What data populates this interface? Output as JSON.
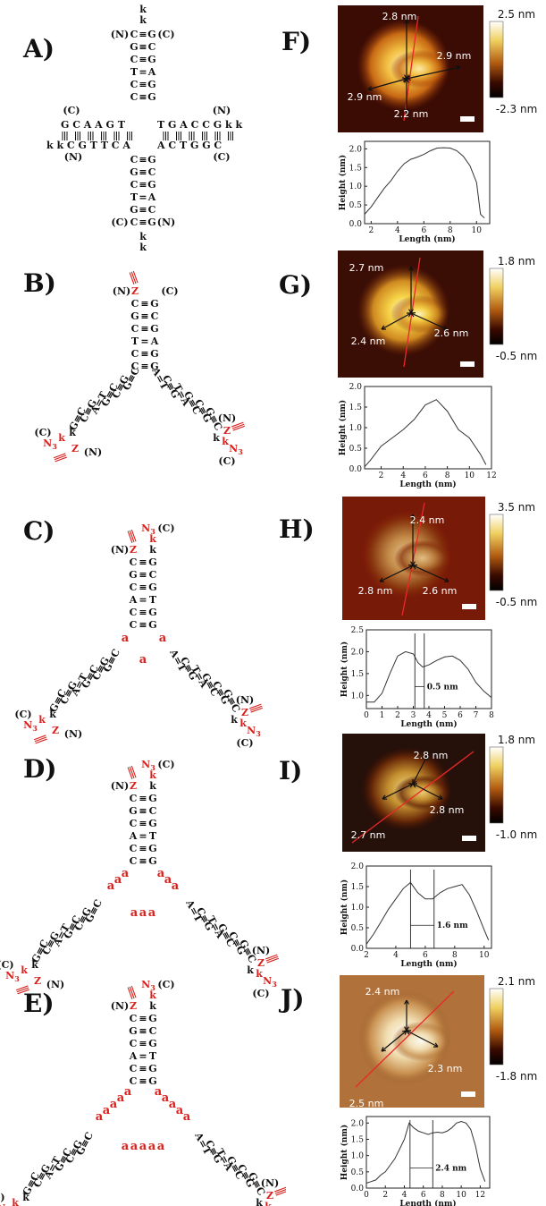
{
  "panel_labels": [
    "A)",
    "B)",
    "C)",
    "D)",
    "E)",
    "F)",
    "G)",
    "H)",
    "I)",
    "J)"
  ],
  "dna": {
    "A": {
      "top_linker": [
        "k",
        "k"
      ],
      "top_stem": [
        [
          "(N)",
          "C",
          "≡",
          "G",
          "(C)"
        ],
        [
          "",
          "G",
          "≡",
          "C",
          ""
        ],
        [
          "",
          "C",
          "≡",
          "G",
          ""
        ],
        [
          "",
          "T",
          "=",
          "A",
          ""
        ],
        [
          "",
          "C",
          "≡",
          "G",
          ""
        ],
        [
          "",
          "C",
          "≡",
          "G",
          ""
        ]
      ],
      "left_arm_top": "G C A A G T",
      "left_arm_bottom": "k k C G T T C A",
      "right_arm_top": "T G A C C G k k",
      "right_arm_bottom": "A C T G G C",
      "bottom_stem": [
        [
          "",
          "C",
          "≡",
          "G",
          ""
        ],
        [
          "",
          "G",
          "≡",
          "C",
          ""
        ],
        [
          "",
          "C",
          "≡",
          "G",
          ""
        ],
        [
          "",
          "T",
          "=",
          "A",
          ""
        ],
        [
          "",
          "G",
          "≡",
          "C",
          ""
        ],
        [
          "(C)",
          "C",
          "≡",
          "G",
          "(N)"
        ]
      ],
      "bottom_linker": [
        "k",
        "k"
      ],
      "terminals": {
        "c_left": "(C)",
        "n_left": "(N)",
        "n_right": "(N)",
        "c_right": "(C)"
      }
    },
    "stem": [
      [
        "C",
        "≡",
        "G"
      ],
      [
        "G",
        "≡",
        "C"
      ],
      [
        "C",
        "≡",
        "G"
      ],
      [
        "T",
        "=",
        "A"
      ],
      [
        "C",
        "≡",
        "G"
      ],
      [
        "C",
        "≡",
        "G"
      ]
    ],
    "stem_CDE": [
      [
        "C",
        "≡",
        "G"
      ],
      [
        "G",
        "≡",
        "C"
      ],
      [
        "C",
        "≡",
        "G"
      ],
      [
        "A",
        "=",
        "T"
      ],
      [
        "C",
        "≡",
        "G"
      ],
      [
        "C",
        "≡",
        "G"
      ]
    ],
    "arm_left_pairs": [
      "G≡C",
      "C≡G",
      "G≡C",
      "A=T",
      "C≡G",
      "G≡C"
    ],
    "arm_right_pairs": [
      "A=T",
      "C≡G",
      "T=A",
      "G≡C",
      "C≡G",
      "G≡C"
    ],
    "marks": {
      "k": "k",
      "Z": "Z",
      "N3": "N",
      "N3_sub": "3",
      "a": "a",
      "N": "(N)",
      "C": "(C)"
    },
    "spacers": {
      "C": [
        "a",
        "a",
        "a"
      ],
      "D": [
        "a",
        "a",
        "a"
      ],
      "E": [
        "a",
        "a",
        "a",
        "a",
        "a"
      ]
    }
  },
  "afm": [
    {
      "panel": "F)",
      "colorbar_max": "2.5 nm",
      "colorbar_min": "-2.3 nm",
      "annotations": [
        "2.8 nm",
        "2.9 nm",
        "2.9 nm",
        "2.2 nm"
      ]
    },
    {
      "panel": "G)",
      "colorbar_max": "1.8 nm",
      "colorbar_min": "-0.5 nm",
      "annotations": [
        "2.7 nm",
        "2.4 nm",
        "2.6 nm"
      ]
    },
    {
      "panel": "H)",
      "colorbar_max": "3.5 nm",
      "colorbar_min": "-0.5 nm",
      "annotations": [
        "2.4 nm",
        "2.8 nm",
        "2.6 nm"
      ]
    },
    {
      "panel": "I)",
      "colorbar_max": "1.8 nm",
      "colorbar_min": "-1.0 nm",
      "annotations": [
        "2.8 nm",
        "2.7 nm",
        "2.8 nm"
      ]
    },
    {
      "panel": "J)",
      "colorbar_max": "2.1 nm",
      "colorbar_min": "-1.8 nm",
      "annotations": [
        "2.4 nm",
        "2.3 nm",
        "2.5 nm"
      ]
    }
  ],
  "chart_data": [
    {
      "type": "line",
      "xlabel": "Length (nm)",
      "ylabel": "Height (nm)",
      "xlim": [
        1.5,
        11
      ],
      "ylim": [
        0,
        2.2
      ],
      "xticks": [
        2,
        4,
        6,
        8,
        10
      ],
      "yticks": [
        0.0,
        0.5,
        1.0,
        1.5,
        2.0
      ],
      "x": [
        1.5,
        2,
        2.5,
        3,
        3.5,
        4,
        4.5,
        5,
        5.5,
        6,
        6.5,
        7,
        7.5,
        8,
        8.5,
        9,
        9.5,
        10,
        10.3,
        10.6
      ],
      "y": [
        0.25,
        0.45,
        0.7,
        0.95,
        1.15,
        1.4,
        1.6,
        1.72,
        1.78,
        1.85,
        1.95,
        2.02,
        2.03,
        2.02,
        1.95,
        1.8,
        1.55,
        1.1,
        0.25,
        0.15
      ],
      "annotations": []
    },
    {
      "type": "line",
      "xlabel": "Length (nm)",
      "ylabel": "Height (nm)",
      "xlim": [
        0.5,
        12
      ],
      "ylim": [
        0,
        2.0
      ],
      "xticks": [
        2,
        4,
        6,
        8,
        10,
        12
      ],
      "yticks": [
        0.0,
        0.5,
        1.0,
        1.5,
        2.0
      ],
      "x": [
        0.5,
        1,
        2,
        3,
        4,
        5,
        6,
        7,
        8,
        9,
        10,
        11,
        11.5
      ],
      "y": [
        0.05,
        0.2,
        0.55,
        0.75,
        0.95,
        1.2,
        1.55,
        1.68,
        1.4,
        0.95,
        0.75,
        0.35,
        0.1
      ],
      "annotations": []
    },
    {
      "type": "line",
      "xlabel": "Length (nm)",
      "ylabel": "Height (nm)",
      "xlim": [
        0,
        8
      ],
      "ylim": [
        0.7,
        2.5
      ],
      "xticks": [
        0,
        1,
        2,
        3,
        4,
        5,
        6,
        7,
        8
      ],
      "yticks": [
        1.0,
        1.5,
        2.0,
        2.5
      ],
      "x": [
        0,
        0.5,
        1,
        1.5,
        2,
        2.5,
        3,
        3.3,
        3.6,
        4,
        4.5,
        5,
        5.5,
        6,
        6.5,
        7,
        7.5,
        8
      ],
      "y": [
        0.85,
        0.85,
        1.05,
        1.5,
        1.9,
        2.0,
        1.95,
        1.75,
        1.65,
        1.7,
        1.8,
        1.88,
        1.9,
        1.8,
        1.6,
        1.3,
        1.1,
        0.95
      ],
      "vlines": [
        3.1,
        3.7
      ],
      "annotations": [
        "0.5 nm"
      ]
    },
    {
      "type": "line",
      "xlabel": "Length (nm)",
      "ylabel": "Height (nm)",
      "xlim": [
        2,
        10.5
      ],
      "ylim": [
        0,
        2.0
      ],
      "xticks": [
        2,
        4,
        6,
        8,
        10
      ],
      "yticks": [
        0.0,
        0.5,
        1.0,
        1.5,
        2.0
      ],
      "x": [
        2,
        2.5,
        3,
        3.5,
        4,
        4.5,
        5,
        5.5,
        6,
        6.5,
        7,
        7.5,
        8,
        8.5,
        9,
        9.5,
        10,
        10.3
      ],
      "y": [
        0.1,
        0.35,
        0.65,
        0.95,
        1.2,
        1.45,
        1.6,
        1.35,
        1.2,
        1.2,
        1.35,
        1.45,
        1.5,
        1.55,
        1.3,
        0.9,
        0.45,
        0.2
      ],
      "vlines": [
        5.0,
        6.6
      ],
      "annotations": [
        "1.6 nm"
      ]
    },
    {
      "type": "line",
      "xlabel": "Length (nm)",
      "ylabel": "Height (nm)",
      "xlim": [
        0,
        13
      ],
      "ylim": [
        0,
        2.2
      ],
      "xticks": [
        0,
        2,
        4,
        6,
        8,
        10,
        12
      ],
      "yticks": [
        0.0,
        0.5,
        1.0,
        1.5,
        2.0
      ],
      "x": [
        0,
        0.5,
        1,
        1.5,
        2,
        2.5,
        3,
        3.5,
        4,
        4.5,
        5,
        5.5,
        6,
        6.5,
        7,
        7.5,
        8,
        8.5,
        9,
        9.5,
        10,
        10.5,
        11,
        11.5,
        12,
        12.5
      ],
      "y": [
        0.15,
        0.2,
        0.25,
        0.4,
        0.5,
        0.7,
        0.9,
        1.2,
        1.5,
        2.0,
        1.85,
        1.75,
        1.7,
        1.65,
        1.7,
        1.72,
        1.7,
        1.75,
        1.85,
        2.0,
        2.05,
        2.0,
        1.8,
        1.3,
        0.6,
        0.2
      ],
      "vlines": [
        4.6,
        7.0
      ],
      "annotations": [
        "2.4 nm"
      ]
    }
  ]
}
